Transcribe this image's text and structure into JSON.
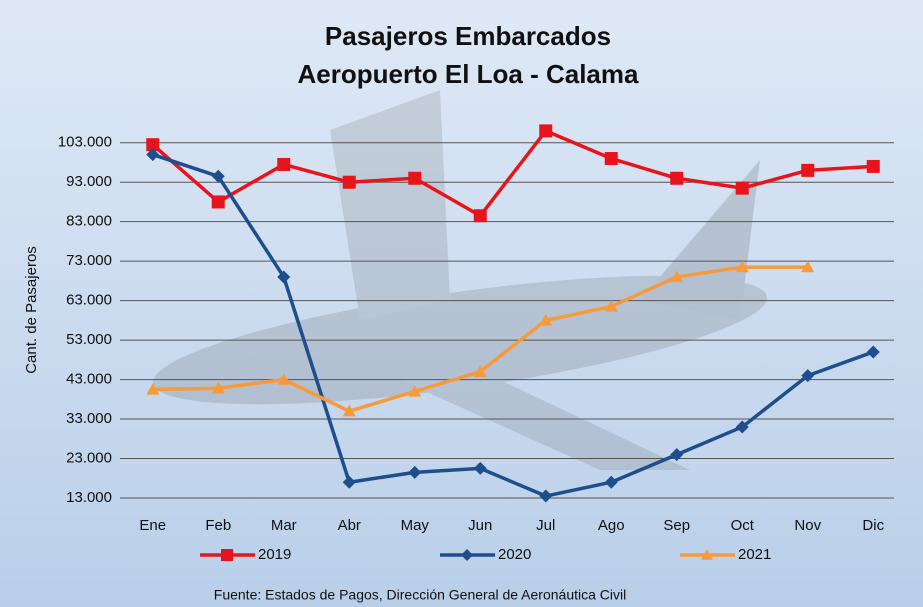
{
  "chart_data": {
    "type": "line",
    "title": "Pasajeros Embarcados",
    "subtitle": "Aeropuerto El Loa - Calama",
    "ylabel": "Cant. de Pasajeros",
    "source": "Fuente: Estados de Pagos, Dirección General de Aeronáutica Civil",
    "categories": [
      "Ene",
      "Feb",
      "Mar",
      "Abr",
      "May",
      "Jun",
      "Jul",
      "Ago",
      "Sep",
      "Oct",
      "Nov",
      "Dic"
    ],
    "series": [
      {
        "name": "2019",
        "color": "#e8141b",
        "marker": "square",
        "values": [
          102500,
          88000,
          97500,
          93000,
          94000,
          84500,
          106000,
          99000,
          94000,
          91500,
          96000,
          97000
        ]
      },
      {
        "name": "2020",
        "color": "#1f4e8c",
        "marker": "diamond",
        "values": [
          100000,
          94500,
          69000,
          17000,
          19500,
          20500,
          13500,
          17000,
          24000,
          31000,
          44000,
          50000
        ]
      },
      {
        "name": "2021",
        "color": "#f79a3c",
        "marker": "triangle",
        "values": [
          40500,
          40800,
          43000,
          35000,
          40000,
          45000,
          58000,
          61500,
          69000,
          71500,
          71500,
          null
        ]
      }
    ],
    "ylim": [
      13000,
      108000
    ],
    "yticks": [
      {
        "value": 13000,
        "label": "13.000"
      },
      {
        "value": 23000,
        "label": "23.000"
      },
      {
        "value": 33000,
        "label": "33.000"
      },
      {
        "value": 43000,
        "label": "43.000"
      },
      {
        "value": 53000,
        "label": "53.000"
      },
      {
        "value": 63000,
        "label": "63.000"
      },
      {
        "value": 73000,
        "label": "73.000"
      },
      {
        "value": 83000,
        "label": "83.000"
      },
      {
        "value": 93000,
        "label": "93.000"
      },
      {
        "value": 103000,
        "label": "103.000"
      }
    ],
    "grid": true,
    "legend": "bottom"
  }
}
